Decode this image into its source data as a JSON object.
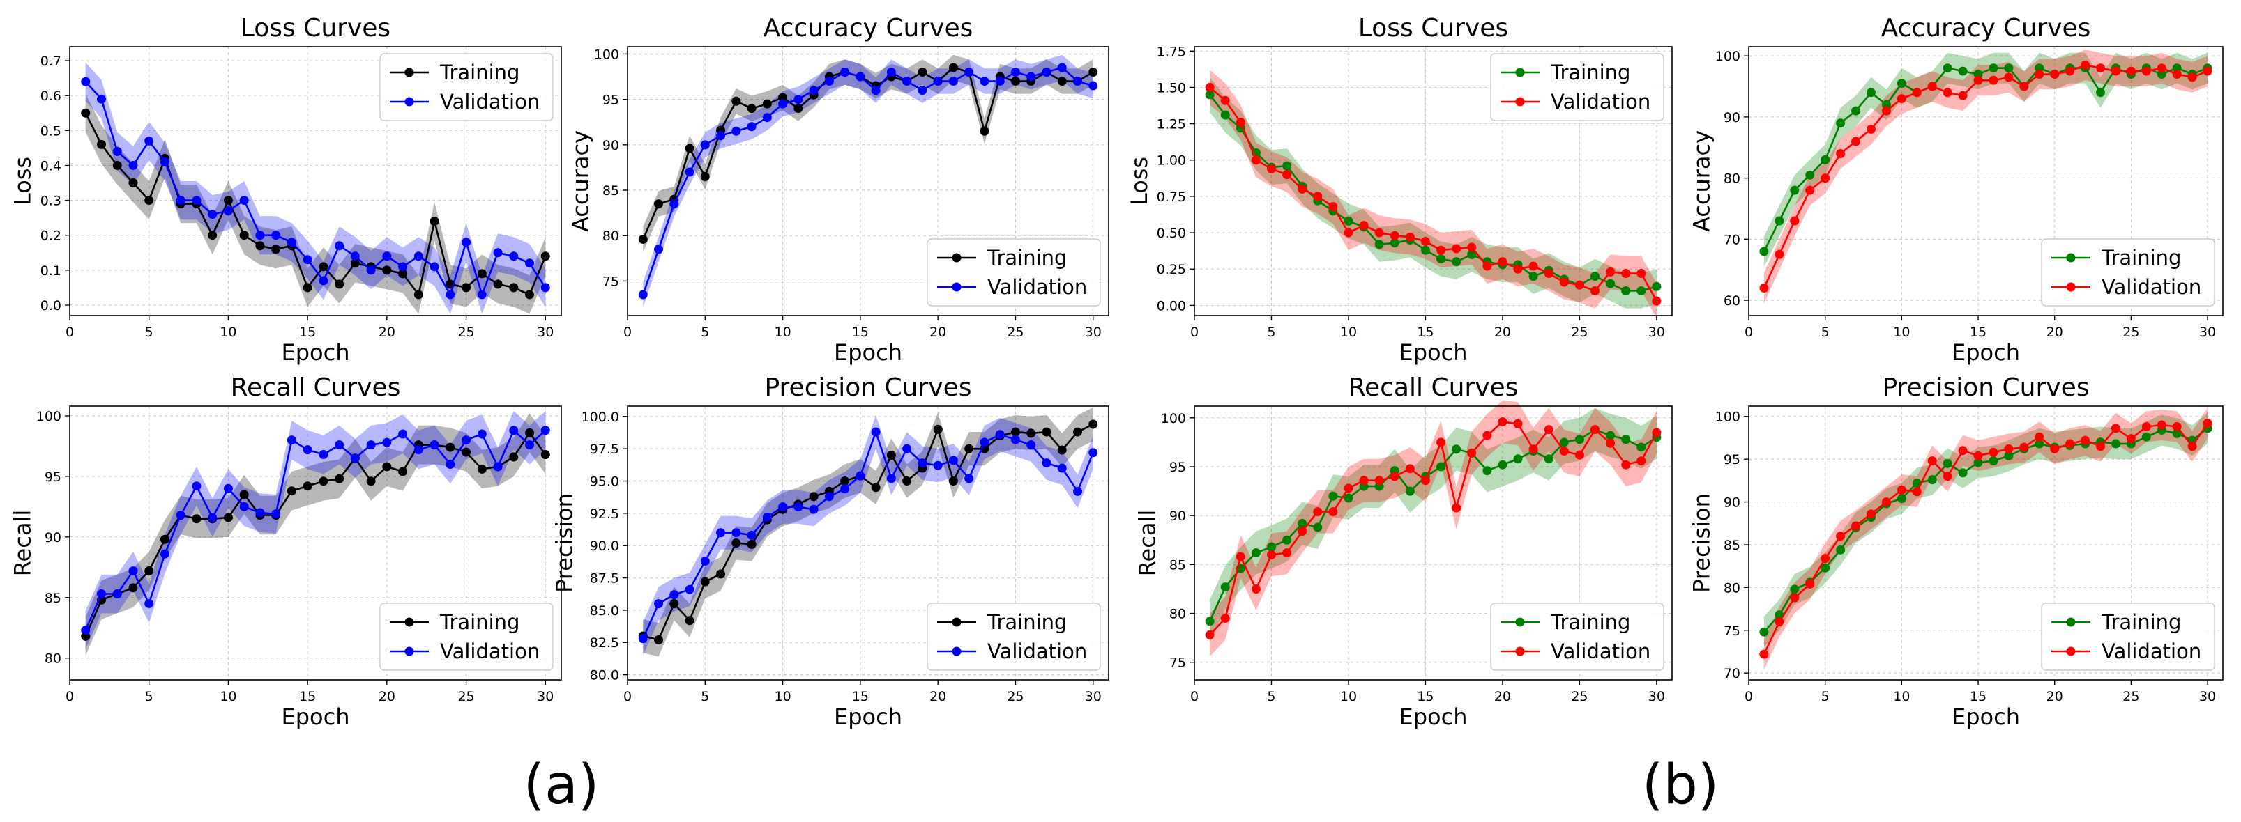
{
  "captions": [
    "(a)",
    "(b)"
  ],
  "chart_data": [
    {
      "type": "line",
      "group": "a",
      "title": "Loss Curves",
      "xlabel": "Epoch",
      "ylabel": "Loss",
      "xlim": [
        0,
        31
      ],
      "ylim": [
        -0.03,
        0.74
      ],
      "xticks": [
        0,
        5,
        10,
        15,
        20,
        25,
        30
      ],
      "xtick_labels": [
        "0",
        "5",
        "10",
        "15",
        "20",
        "25",
        "30"
      ],
      "yticks": [
        0,
        0.1,
        0.2,
        0.3,
        0.4,
        0.5,
        0.6,
        0.7
      ],
      "ytick_labels": [
        "0.0",
        "0.1",
        "0.2",
        "0.3",
        "0.4",
        "0.5",
        "0.6",
        "0.7"
      ],
      "grid": true,
      "legend_loc": "top-right",
      "band": 0.055,
      "series": [
        {
          "name": "Training",
          "color": "#000000",
          "values": [
            0.55,
            0.46,
            0.4,
            0.35,
            0.3,
            0.42,
            0.29,
            0.29,
            0.2,
            0.3,
            0.2,
            0.17,
            0.16,
            0.17,
            0.05,
            0.11,
            0.06,
            0.12,
            0.11,
            0.1,
            0.09,
            0.03,
            0.24,
            0.06,
            0.05,
            0.09,
            0.06,
            0.05,
            0.03,
            0.14
          ]
        },
        {
          "name": "Validation",
          "color": "#0000ff",
          "values": [
            0.64,
            0.59,
            0.44,
            0.4,
            0.47,
            0.41,
            0.3,
            0.3,
            0.26,
            0.27,
            0.3,
            0.2,
            0.2,
            0.18,
            0.13,
            0.07,
            0.17,
            0.14,
            0.1,
            0.14,
            0.11,
            0.14,
            0.11,
            0.03,
            0.18,
            0.03,
            0.15,
            0.14,
            0.12,
            0.05
          ]
        }
      ]
    },
    {
      "type": "line",
      "group": "a",
      "title": "Accuracy Curves",
      "xlabel": "Epoch",
      "ylabel": "Accuracy",
      "xlim": [
        0,
        31
      ],
      "ylim": [
        71.2,
        100.8
      ],
      "xticks": [
        0,
        5,
        10,
        15,
        20,
        25,
        30
      ],
      "xtick_labels": [
        "0",
        "5",
        "10",
        "15",
        "20",
        "25",
        "30"
      ],
      "yticks": [
        75,
        80,
        85,
        90,
        95,
        100
      ],
      "ytick_labels": [
        "75",
        "80",
        "85",
        "90",
        "95",
        "100"
      ],
      "grid": true,
      "legend_loc": "bottom-right",
      "band": 1.4,
      "series": [
        {
          "name": "Training",
          "color": "#000000",
          "values": [
            79.6,
            83.5,
            84.0,
            89.6,
            86.5,
            91.6,
            94.8,
            94.0,
            94.5,
            95.2,
            94.0,
            95.5,
            97.5,
            98.0,
            97.5,
            96.5,
            97.5,
            97.0,
            98.0,
            97.0,
            98.5,
            98.0,
            91.5,
            97.5,
            97.0,
            97.0,
            98.0,
            97.0,
            97.0,
            98.0
          ]
        },
        {
          "name": "Validation",
          "color": "#0000ff",
          "values": [
            73.5,
            78.5,
            83.5,
            87.0,
            90.0,
            91.0,
            91.5,
            92.0,
            93.0,
            94.5,
            95.0,
            96.0,
            97.0,
            98.0,
            97.5,
            96.0,
            98.0,
            97.0,
            96.0,
            97.0,
            97.0,
            98.0,
            97.0,
            97.0,
            98.0,
            97.5,
            98.0,
            98.5,
            97.0,
            96.5
          ]
        }
      ]
    },
    {
      "type": "line",
      "group": "b",
      "title": "Loss Curves",
      "xlabel": "Epoch",
      "ylabel": "Loss",
      "xlim": [
        0,
        31
      ],
      "ylim": [
        -0.07,
        1.78
      ],
      "xticks": [
        0,
        5,
        10,
        15,
        20,
        25,
        30
      ],
      "xtick_labels": [
        "0",
        "5",
        "10",
        "15",
        "20",
        "25",
        "30"
      ],
      "yticks": [
        0,
        0.25,
        0.5,
        0.75,
        1.0,
        1.25,
        1.5,
        1.75
      ],
      "ytick_labels": [
        "0.00",
        "0.25",
        "0.50",
        "0.75",
        "1.00",
        "1.25",
        "1.50",
        "1.75"
      ],
      "grid": true,
      "legend_loc": "top-right",
      "band": 0.12,
      "series": [
        {
          "name": "Training",
          "color": "#008000",
          "values": [
            1.45,
            1.31,
            1.22,
            1.05,
            0.95,
            0.96,
            0.82,
            0.72,
            0.65,
            0.58,
            0.54,
            0.42,
            0.43,
            0.45,
            0.38,
            0.32,
            0.3,
            0.35,
            0.3,
            0.28,
            0.28,
            0.2,
            0.24,
            0.18,
            0.14,
            0.2,
            0.15,
            0.1,
            0.1,
            0.13
          ]
        },
        {
          "name": "Validation",
          "color": "#ff0000",
          "values": [
            1.5,
            1.41,
            1.26,
            1.0,
            0.94,
            0.9,
            0.8,
            0.75,
            0.68,
            0.5,
            0.55,
            0.5,
            0.48,
            0.47,
            0.44,
            0.38,
            0.39,
            0.4,
            0.27,
            0.3,
            0.25,
            0.27,
            0.22,
            0.16,
            0.14,
            0.1,
            0.23,
            0.22,
            0.22,
            0.03
          ]
        }
      ]
    },
    {
      "type": "line",
      "group": "b",
      "title": "Accuracy Curves",
      "xlabel": "Epoch",
      "ylabel": "Accuracy",
      "xlim": [
        0,
        31
      ],
      "ylim": [
        57.5,
        101.5
      ],
      "xticks": [
        0,
        5,
        10,
        15,
        20,
        25,
        30
      ],
      "xtick_labels": [
        "0",
        "5",
        "10",
        "15",
        "20",
        "25",
        "30"
      ],
      "yticks": [
        60,
        70,
        80,
        90,
        100
      ],
      "ytick_labels": [
        "60",
        "70",
        "80",
        "90",
        "100"
      ],
      "grid": true,
      "legend_loc": "bottom-right",
      "band": 2.5,
      "series": [
        {
          "name": "Training",
          "color": "#008000",
          "values": [
            68.0,
            73.0,
            78.0,
            80.5,
            83.0,
            89.0,
            91.0,
            94.0,
            92.0,
            95.5,
            94.0,
            95.0,
            98.0,
            97.5,
            97.0,
            98.0,
            98.0,
            95.0,
            98.0,
            97.0,
            98.0,
            98.0,
            94.0,
            98.0,
            97.0,
            98.0,
            97.0,
            98.0,
            97.0,
            98.0
          ]
        },
        {
          "name": "Validation",
          "color": "#ff0000",
          "values": [
            62.0,
            67.5,
            73.0,
            78.0,
            80.0,
            84.0,
            86.0,
            88.0,
            91.0,
            93.0,
            94.0,
            95.0,
            94.0,
            93.5,
            96.0,
            96.0,
            96.5,
            95.0,
            97.0,
            97.0,
            97.5,
            98.5,
            98.0,
            97.5,
            97.5,
            97.5,
            98.0,
            97.0,
            96.5,
            97.5
          ]
        }
      ]
    },
    {
      "type": "line",
      "group": "a",
      "title": "Recall Curves",
      "xlabel": "Epoch",
      "ylabel": "Recall",
      "xlim": [
        0,
        31
      ],
      "ylim": [
        78.2,
        100.8
      ],
      "xticks": [
        0,
        5,
        10,
        15,
        20,
        25,
        30
      ],
      "xtick_labels": [
        "0",
        "5",
        "10",
        "15",
        "20",
        "25",
        "30"
      ],
      "yticks": [
        80,
        85,
        90,
        95,
        100
      ],
      "ytick_labels": [
        "80",
        "85",
        "90",
        "95",
        "100"
      ],
      "grid": true,
      "legend_loc": "bottom-right",
      "band": 1.6,
      "series": [
        {
          "name": "Training",
          "color": "#000000",
          "values": [
            81.8,
            84.8,
            85.3,
            85.8,
            87.2,
            89.8,
            91.8,
            91.5,
            91.5,
            91.6,
            93.5,
            91.8,
            91.8,
            93.8,
            94.2,
            94.6,
            94.8,
            96.5,
            94.6,
            95.8,
            95.4,
            97.6,
            97.6,
            97.4,
            97.0,
            95.6,
            95.8,
            96.6,
            98.6,
            96.8
          ]
        },
        {
          "name": "Validation",
          "color": "#0000ff",
          "values": [
            82.3,
            85.3,
            85.3,
            87.2,
            84.5,
            88.6,
            91.8,
            94.2,
            91.6,
            94.0,
            92.5,
            92.0,
            91.9,
            98.0,
            97.2,
            96.8,
            97.6,
            96.5,
            97.6,
            97.8,
            98.5,
            97.2,
            97.6,
            96.0,
            98.0,
            98.5,
            95.8,
            98.8,
            97.6,
            98.8
          ]
        }
      ]
    },
    {
      "type": "line",
      "group": "a",
      "title": "Precision Curves",
      "xlabel": "Epoch",
      "ylabel": "Precision",
      "xlim": [
        0,
        31
      ],
      "ylim": [
        79.6,
        100.8
      ],
      "xticks": [
        0,
        5,
        10,
        15,
        20,
        25,
        30
      ],
      "xtick_labels": [
        "0",
        "5",
        "10",
        "15",
        "20",
        "25",
        "30"
      ],
      "yticks": [
        80,
        82.5,
        85,
        87.5,
        90,
        92.5,
        95,
        97.5,
        100
      ],
      "ytick_labels": [
        "80.0",
        "82.5",
        "85.0",
        "87.5",
        "90.0",
        "92.5",
        "95.0",
        "97.5",
        "100.0"
      ],
      "grid": true,
      "legend_loc": "bottom-right",
      "band": 1.3,
      "series": [
        {
          "name": "Training",
          "color": "#000000",
          "values": [
            83.0,
            82.7,
            85.5,
            84.2,
            87.2,
            87.8,
            90.2,
            90.1,
            92.0,
            92.8,
            93.2,
            93.8,
            94.2,
            95.0,
            95.4,
            94.5,
            97.0,
            95.0,
            96.0,
            99.0,
            95.0,
            97.5,
            97.5,
            98.5,
            98.8,
            98.7,
            98.8,
            97.4,
            98.8,
            99.4
          ]
        },
        {
          "name": "Validation",
          "color": "#0000ff",
          "values": [
            82.8,
            85.5,
            86.2,
            86.6,
            88.8,
            91.0,
            91.0,
            90.8,
            92.2,
            93.0,
            93.0,
            92.8,
            93.8,
            94.4,
            95.4,
            98.8,
            95.2,
            97.5,
            96.4,
            96.2,
            96.6,
            95.2,
            98.0,
            98.6,
            98.2,
            97.8,
            96.4,
            96.0,
            94.2,
            97.2
          ]
        }
      ]
    },
    {
      "type": "line",
      "group": "b",
      "title": "Recall Curves",
      "xlabel": "Epoch",
      "ylabel": "Recall",
      "xlim": [
        0,
        31
      ],
      "ylim": [
        73.2,
        101.2
      ],
      "xticks": [
        0,
        5,
        10,
        15,
        20,
        25,
        30
      ],
      "xtick_labels": [
        "0",
        "5",
        "10",
        "15",
        "20",
        "25",
        "30"
      ],
      "yticks": [
        75,
        80,
        85,
        90,
        95,
        100
      ],
      "ytick_labels": [
        "75",
        "80",
        "85",
        "90",
        "95",
        "100"
      ],
      "grid": true,
      "legend_loc": "bottom-right",
      "band": 2.2,
      "series": [
        {
          "name": "Training",
          "color": "#008000",
          "values": [
            79.2,
            82.7,
            84.6,
            86.2,
            86.8,
            87.5,
            89.2,
            88.8,
            92.0,
            91.8,
            93.0,
            93.0,
            94.6,
            92.5,
            94.0,
            95.0,
            96.8,
            96.4,
            94.6,
            95.2,
            95.8,
            96.6,
            95.8,
            97.5,
            97.8,
            98.8,
            98.2,
            97.8,
            97.0,
            98.0
          ]
        },
        {
          "name": "Validation",
          "color": "#ff0000",
          "values": [
            77.8,
            79.5,
            85.8,
            82.5,
            86.0,
            86.2,
            88.4,
            90.4,
            90.4,
            92.8,
            93.6,
            93.6,
            94.0,
            94.8,
            93.6,
            97.5,
            90.8,
            96.4,
            98.2,
            99.6,
            99.4,
            96.8,
            98.8,
            96.6,
            96.2,
            98.8,
            97.4,
            95.2,
            95.6,
            98.5
          ]
        }
      ]
    },
    {
      "type": "line",
      "group": "b",
      "title": "Precision Curves",
      "xlabel": "Epoch",
      "ylabel": "Precision",
      "xlim": [
        0,
        31
      ],
      "ylim": [
        69.2,
        101.2
      ],
      "xticks": [
        0,
        5,
        10,
        15,
        20,
        25,
        30
      ],
      "xtick_labels": [
        "0",
        "5",
        "10",
        "15",
        "20",
        "25",
        "30"
      ],
      "yticks": [
        70,
        75,
        80,
        85,
        90,
        95,
        100
      ],
      "ytick_labels": [
        "70",
        "75",
        "80",
        "85",
        "90",
        "95",
        "100"
      ],
      "grid": true,
      "legend_loc": "bottom-right",
      "band": 1.8,
      "series": [
        {
          "name": "Training",
          "color": "#008000",
          "values": [
            74.8,
            76.8,
            79.8,
            80.6,
            82.3,
            84.4,
            87.0,
            88.2,
            89.8,
            90.4,
            92.2,
            92.6,
            94.5,
            93.4,
            94.6,
            94.8,
            95.4,
            96.2,
            96.8,
            96.4,
            96.6,
            96.8,
            97.0,
            96.8,
            96.8,
            97.6,
            98.4,
            98.0,
            97.2,
            98.6
          ]
        },
        {
          "name": "Validation",
          "color": "#ff0000",
          "values": [
            72.2,
            76.0,
            78.8,
            80.4,
            83.4,
            86.0,
            87.2,
            88.6,
            90.0,
            91.4,
            91.2,
            94.8,
            93.0,
            96.0,
            95.4,
            95.8,
            96.2,
            96.4,
            97.6,
            96.2,
            96.8,
            97.2,
            96.5,
            98.6,
            97.4,
            98.8,
            99.0,
            98.8,
            96.5,
            99.2
          ]
        }
      ]
    }
  ]
}
